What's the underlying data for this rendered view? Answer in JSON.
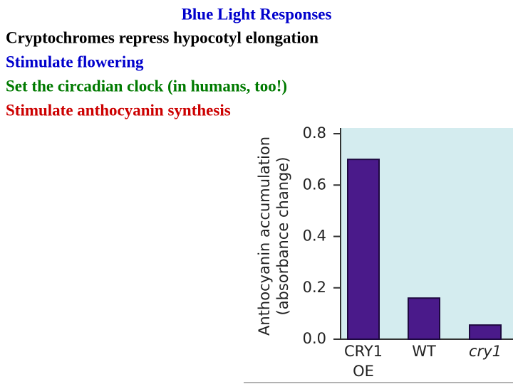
{
  "slide": {
    "title": "Blue Light Responses",
    "lines": [
      "Cryptochromes repress hypocotyl elongation",
      "Stimulate flowering",
      "Set the circadian clock (in humans, too!)",
      "Stimulate anthocyanin synthesis"
    ],
    "line_colors": [
      "#000000",
      "#0000cc",
      "#007a00",
      "#cc0000"
    ],
    "title_color": "#0000cc"
  },
  "chart_data": {
    "type": "bar",
    "ylabel": [
      "Anthocyanin accumulation",
      "(absorbance change)"
    ],
    "categories": [
      "CRY1 OE",
      "WT",
      "cry1"
    ],
    "values": [
      0.7,
      0.16,
      0.055
    ],
    "color": "#4a1a8a",
    "ylim": [
      0,
      0.8
    ],
    "yticks": [
      {
        "value": 0,
        "label": "0.0"
      },
      0.2,
      0.4,
      0.6,
      0.8
    ]
  }
}
